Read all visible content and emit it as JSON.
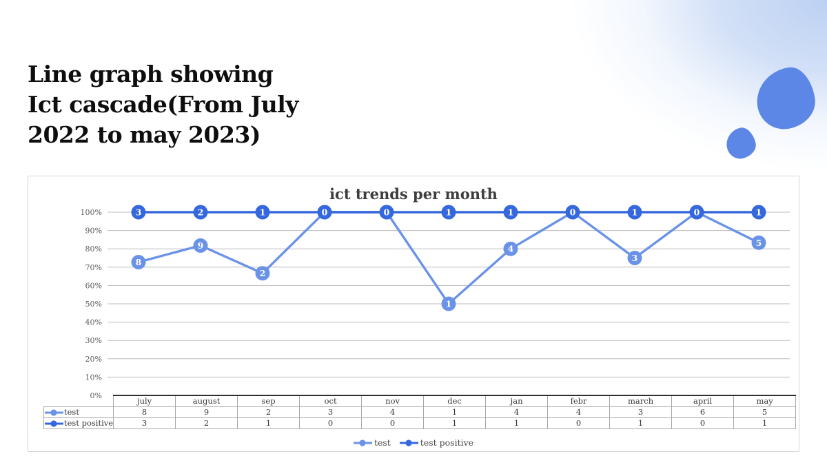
{
  "slide": {
    "title_lines": [
      "Line graph showing",
      "Ict cascade(From July",
      "2022 to may 2023)"
    ]
  },
  "decorations": {
    "blob_color": "#5c87e6",
    "corner_glow_color": "#b9cef2"
  },
  "chart_data": {
    "type": "line",
    "stacking": "percent",
    "title": "ict trends per month",
    "categories": [
      "july",
      "august",
      "sep",
      "oct",
      "nov",
      "dec",
      "jan",
      "febr",
      "march",
      "april",
      "may"
    ],
    "series": [
      {
        "name": "test",
        "color": "#6a93e8",
        "values": [
          8,
          9,
          2,
          3,
          4,
          1,
          4,
          4,
          3,
          6,
          5
        ]
      },
      {
        "name": "test positive",
        "color": "#3567dd",
        "values": [
          3,
          2,
          1,
          0,
          0,
          1,
          1,
          0,
          1,
          0,
          1
        ]
      }
    ],
    "y_ticks": [
      "0%",
      "10%",
      "20%",
      "30%",
      "40%",
      "50%",
      "60%",
      "70%",
      "80%",
      "90%",
      "100%"
    ],
    "ylim": [
      0,
      1
    ],
    "grid": true,
    "gridline_color": "#bcbcbc",
    "legend_position": "bottom",
    "show_data_table": true,
    "marker_labels": "raw_values"
  }
}
